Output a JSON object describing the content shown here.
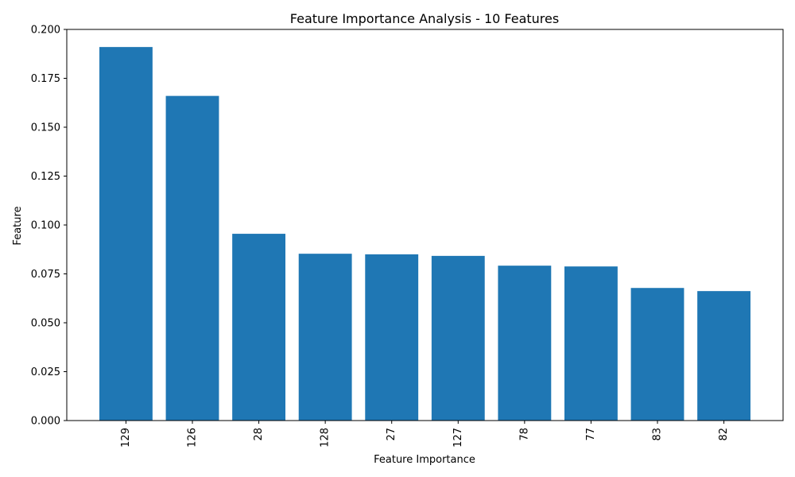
{
  "chart_data": {
    "type": "bar",
    "title": "Feature Importance Analysis - 10 Features",
    "xlabel": "Feature Importance",
    "ylabel": "Feature",
    "categories": [
      "129",
      "126",
      "28",
      "128",
      "27",
      "127",
      "78",
      "77",
      "83",
      "82"
    ],
    "values": [
      0.191,
      0.166,
      0.0955,
      0.0853,
      0.085,
      0.0842,
      0.0792,
      0.0788,
      0.0678,
      0.0662
    ],
    "ylim": [
      0,
      0.2
    ],
    "yticks": [
      "0.000",
      "0.025",
      "0.050",
      "0.075",
      "0.100",
      "0.125",
      "0.150",
      "0.175",
      "0.200"
    ],
    "ytick_values": [
      0,
      0.025,
      0.05,
      0.075,
      0.1,
      0.125,
      0.15,
      0.175,
      0.2
    ],
    "bar_color": "#1f77b4",
    "grid": false,
    "legend": "none"
  }
}
